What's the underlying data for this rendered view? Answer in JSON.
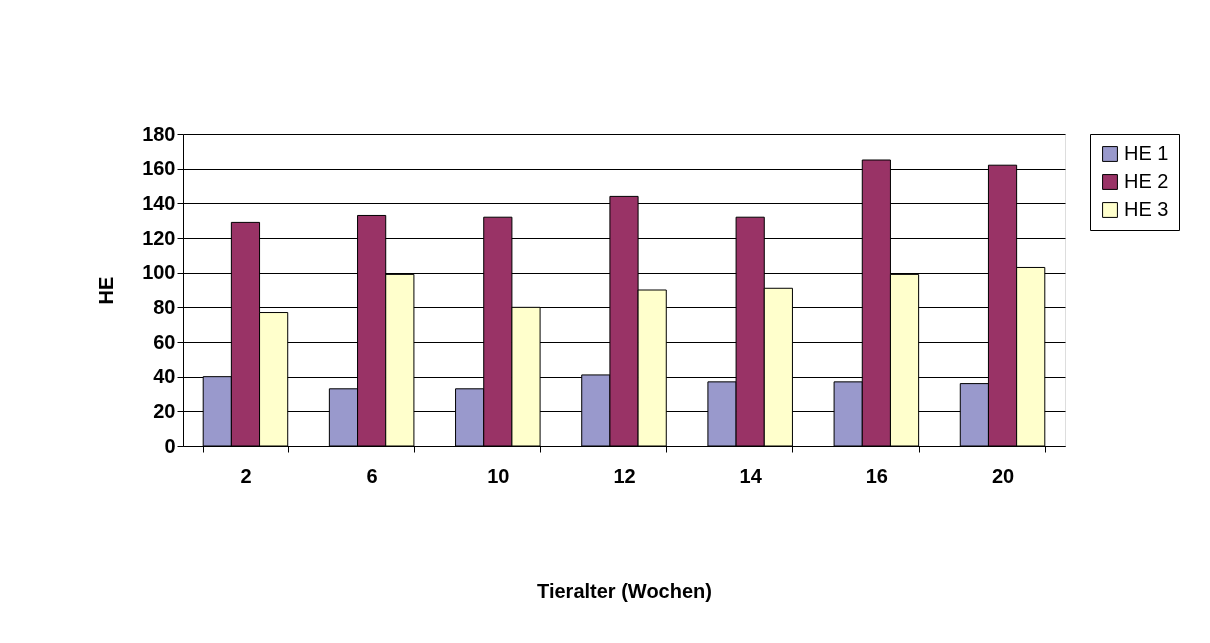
{
  "chart_data": {
    "type": "bar",
    "xlabel": "Tieralter (Wochen)",
    "ylabel": "HE",
    "categories": [
      "2",
      "6",
      "10",
      "12",
      "14",
      "16",
      "20"
    ],
    "series": [
      {
        "name": "HE 1",
        "color": "#9999cc",
        "values": [
          40,
          33,
          33,
          41,
          37,
          37,
          36
        ]
      },
      {
        "name": "HE 2",
        "color": "#993366",
        "values": [
          129,
          133,
          132,
          144,
          132,
          165,
          162
        ]
      },
      {
        "name": "HE 3",
        "color": "#ffffcc",
        "values": [
          77,
          99,
          80,
          90,
          91,
          99,
          103
        ]
      }
    ],
    "ylim": [
      0,
      180
    ],
    "yticks": [
      0,
      20,
      40,
      60,
      80,
      100,
      120,
      140,
      160,
      180
    ],
    "grid": "y",
    "legend": "right"
  }
}
